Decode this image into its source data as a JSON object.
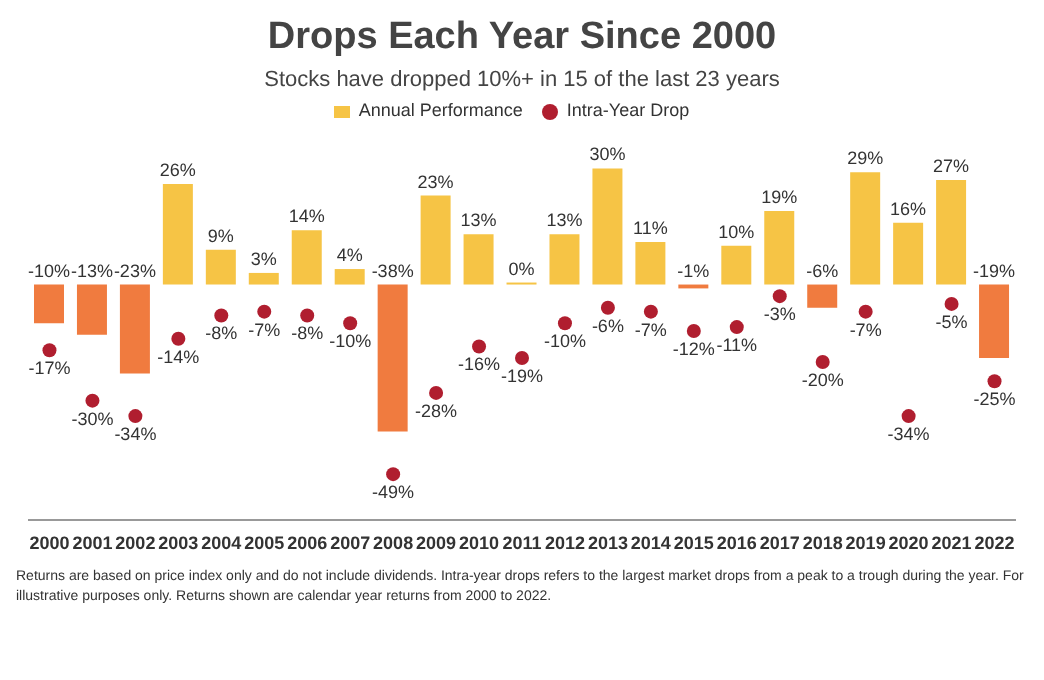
{
  "chart_data": {
    "type": "bar",
    "title": "Drops Each Year Since 2000",
    "subtitle": "Stocks have dropped 10%+ in 15 of the last 23 years",
    "categories": [
      "2000",
      "2001",
      "2002",
      "2003",
      "2004",
      "2005",
      "2006",
      "2007",
      "2008",
      "2009",
      "2010",
      "2011",
      "2012",
      "2013",
      "2014",
      "2015",
      "2016",
      "2017",
      "2018",
      "2019",
      "2020",
      "2021",
      "2022"
    ],
    "series": [
      {
        "name": "Intra-Year Drop",
        "type": "scatter",
        "color": "#b01e2f",
        "values": [
          -17,
          -30,
          -34,
          -14,
          -8,
          -7,
          -8,
          -10,
          -49,
          -28,
          -16,
          -19,
          -10,
          -6,
          -7,
          -12,
          -11,
          -3,
          -20,
          -7,
          -34,
          -5,
          -25
        ],
        "value_labels": [
          "-17%",
          "-30%",
          "-34%",
          "-14%",
          "-8%",
          "-7%",
          "-8%",
          "-10%",
          "-49%",
          "-28%",
          "-16%",
          "-19%",
          "-10%",
          "-6%",
          "-7%",
          "-12%",
          "-11%",
          "-3%",
          "-20%",
          "-7%",
          "-34%",
          "-5%",
          "-25%"
        ]
      },
      {
        "name": "Annual Performance",
        "color": "#f6c445",
        "colors": [
          "#f07b3f",
          "#f07b3f",
          "#f07b3f",
          "#f6c445",
          "#f6c445",
          "#f6c445",
          "#f6c445",
          "#f6c445",
          "#f07b3f",
          "#f6c445",
          "#f6c445",
          "#f6c445",
          "#f6c445",
          "#f6c445",
          "#f6c445",
          "#f07b3f",
          "#f6c445",
          "#f6c445",
          "#f07b3f",
          "#f6c445",
          "#f6c445",
          "#f6c445",
          "#f07b3f"
        ],
        "values": [
          -10,
          -13,
          -23,
          26,
          9,
          3,
          14,
          4,
          -38,
          23,
          13,
          0,
          13,
          30,
          11,
          -1,
          10,
          19,
          -6,
          29,
          16,
          27,
          -19
        ],
        "value_labels": [
          "-10%",
          "-13%",
          "-23%",
          "26%",
          "9%",
          "3%",
          "14%",
          "4%",
          "-38%",
          "23%",
          "13%",
          "0%",
          "13%",
          "30%",
          "11%",
          "-1%",
          "10%",
          "19%",
          "-6%",
          "29%",
          "16%",
          "27%",
          "-19%"
        ]
      }
    ],
    "legend": "top",
    "marker": "circle",
    "annotations": [
      "Returns are based on price index only and do not include dividends. Intra-year drops refers to the largest market drops from a peak to a trough during the year. For illustrative purposes only. Returns shown are calendar year returns from 2000 to 2022."
    ]
  }
}
